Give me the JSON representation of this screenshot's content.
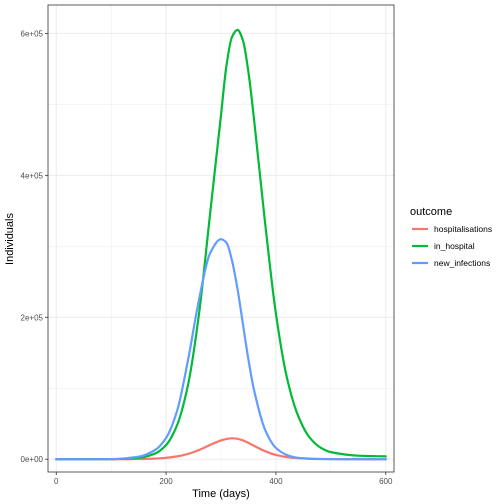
{
  "chart_data": {
    "type": "line",
    "xlabel": "Time (days)",
    "ylabel": "Individuals",
    "xlim": [
      -15,
      615
    ],
    "ylim": [
      -18000,
      640000
    ],
    "x_ticks": [
      0,
      200,
      400,
      600
    ],
    "x_tick_labels": [
      "0",
      "200",
      "400",
      "600"
    ],
    "y_ticks": [
      0,
      200000,
      400000,
      600000
    ],
    "y_tick_labels": [
      "0e+00",
      "2e+05",
      "4e+05",
      "6e+05"
    ],
    "grid": true,
    "legend": {
      "title": "outcome",
      "placement": "right"
    },
    "x": [
      0,
      50,
      100,
      150,
      180,
      200,
      220,
      240,
      260,
      280,
      300,
      310,
      320,
      330,
      340,
      350,
      360,
      380,
      400,
      420,
      440,
      460,
      480,
      500,
      550,
      600
    ],
    "series": [
      {
        "name": "hospitalisations",
        "color": "#F8766D",
        "values": [
          0,
          0,
          0,
          300,
          900,
          2000,
          4000,
          7500,
          13000,
          20000,
          26500,
          28500,
          29500,
          28800,
          26500,
          23000,
          19000,
          11500,
          6000,
          3000,
          1500,
          800,
          400,
          200,
          50,
          10
        ]
      },
      {
        "name": "in_hospital",
        "color": "#00BA38",
        "values": [
          0,
          0,
          100,
          2000,
          8000,
          20000,
          48000,
          105000,
          205000,
          345000,
          485000,
          555000,
          595000,
          605000,
          590000,
          545000,
          480000,
          335000,
          205000,
          115000,
          62000,
          32000,
          17000,
          10000,
          5000,
          4000
        ]
      },
      {
        "name": "new_infections",
        "color": "#619CFF",
        "values": [
          0,
          0,
          200,
          3500,
          13000,
          30000,
          68000,
          140000,
          225000,
          290000,
          310000,
          305000,
          280000,
          240000,
          190000,
          140000,
          98000,
          42000,
          16000,
          6000,
          2000,
          700,
          200,
          50,
          0,
          0
        ]
      }
    ]
  }
}
